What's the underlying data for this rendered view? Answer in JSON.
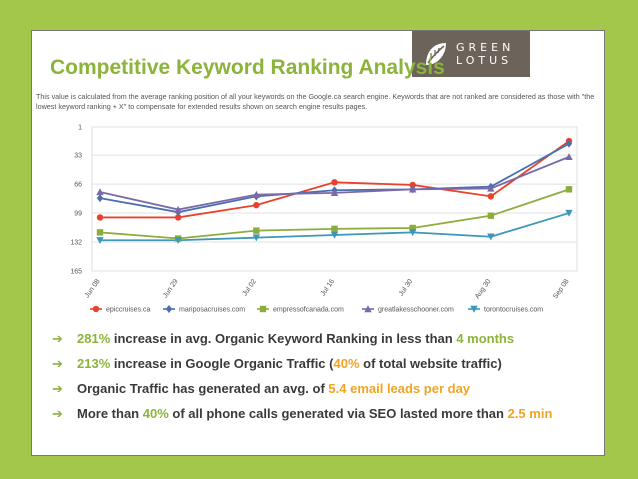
{
  "logo": {
    "line1": "GREEN",
    "line2": "LOTUS"
  },
  "title": "Competitive Keyword Ranking Analysis",
  "description": "This value is calculated from the average ranking position of all your keywords on the Google.ca search engine. Keywords that are not ranked are considered as those with \"the lowest keyword ranking + X\" to compensate  for extended results shown on search engine results pages.",
  "chart_data": {
    "type": "line",
    "categories": [
      "Jun 08",
      "Jun 29",
      "Jul 02",
      "Jul 16",
      "Jul 30",
      "Aug 30",
      "Sep 08"
    ],
    "y_ticks": [
      1,
      33,
      66,
      99,
      132,
      165
    ],
    "y_inverted": true,
    "ylim": [
      1,
      165
    ],
    "legend_position": "bottom",
    "grid": true,
    "series": [
      {
        "name": "epiccruises.ca",
        "color": "#e8412c",
        "marker": "circle",
        "values": [
          104,
          104,
          90,
          64,
          67,
          80,
          17
        ]
      },
      {
        "name": "mariposacruises.com",
        "color": "#4a6fb0",
        "marker": "diamond",
        "values": [
          82,
          98,
          80,
          73,
          72,
          69,
          20
        ]
      },
      {
        "name": "empressofcanada.com",
        "color": "#8cad3b",
        "marker": "square",
        "values": [
          121,
          128,
          119,
          117,
          116,
          102,
          72
        ]
      },
      {
        "name": "greatlakesschooner.com",
        "color": "#7b69a8",
        "marker": "triangle",
        "values": [
          75,
          95,
          78,
          76,
          72,
          71,
          35
        ]
      },
      {
        "name": "torontocruises.com",
        "color": "#3d97b8",
        "marker": "triangle-down",
        "values": [
          130,
          130,
          127,
          124,
          121,
          126,
          99
        ]
      }
    ]
  },
  "bullets": [
    {
      "pre": "",
      "h1": "281%",
      "mid": " increase in avg. Organic Keyword Ranking in less than ",
      "h2": "4 months",
      "post": ""
    },
    {
      "pre": "",
      "h1": "213%",
      "mid": " increase in Google Organic Traffic (",
      "h2": "40%",
      "post": " of total website traffic)"
    },
    {
      "pre": "Organic Traffic has generated an avg. of ",
      "h1": "",
      "mid": "",
      "h2": "5.4 email leads per day",
      "post": ""
    },
    {
      "pre": "More than ",
      "h1": "40%",
      "mid": " of all phone calls generated via SEO lasted more than ",
      "h2": "2.5 min",
      "post": ""
    }
  ],
  "colors": {
    "background": "#a3c74a",
    "accent_green": "#8cb33a",
    "accent_orange": "#f0a422",
    "logo_bg": "#6c645a"
  },
  "icons": {
    "logo": "lotus-leaf-icon",
    "bullet": "arrow-right-icon"
  }
}
